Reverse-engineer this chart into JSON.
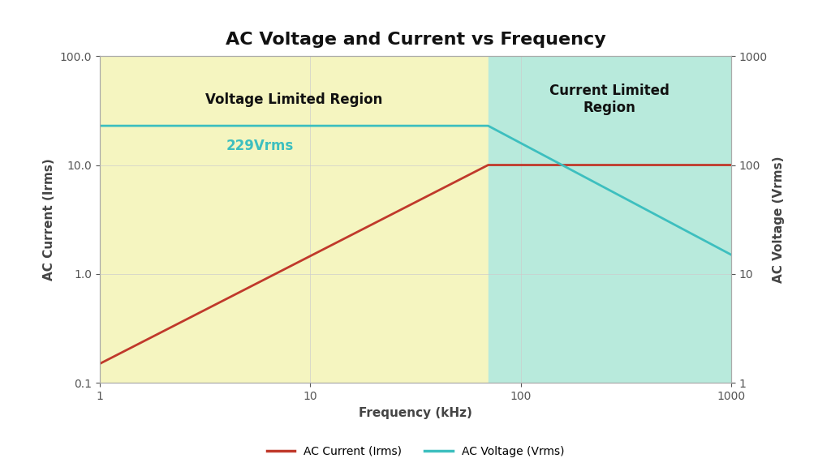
{
  "title": "AC Voltage and Current vs Frequency",
  "xlabel": "Frequency (kHz)",
  "ylabel_left": "AC Current (Irms)",
  "ylabel_right": "AC Voltage (Vrms)",
  "xlim": [
    1,
    1000
  ],
  "ylim_left": [
    0.1,
    100.0
  ],
  "ylim_right": [
    1,
    1000
  ],
  "transition_freq": 70,
  "voltage_constant": 229,
  "current_max": 10.0,
  "current_start": 0.15,
  "voltage_end": 15,
  "region1_color": "#f5f5c0",
  "region2_color": "#b8eadc",
  "current_color": "#c0392b",
  "voltage_color": "#3dbfbf",
  "annotation_text": "229Vrms",
  "annotation_color": "#3dbfbf",
  "region1_label": "Voltage Limited Region",
  "region2_label": "Current Limited\nRegion",
  "legend_current": "AC Current (Irms)",
  "legend_voltage": "AC Voltage (Vrms)",
  "background_color": "#ffffff",
  "plot_bg_color": "#ffffff",
  "grid_color": "#cccccc",
  "title_fontsize": 16,
  "label_fontsize": 11,
  "tick_fontsize": 10,
  "annotation_fontsize": 12,
  "region_label_fontsize": 12
}
